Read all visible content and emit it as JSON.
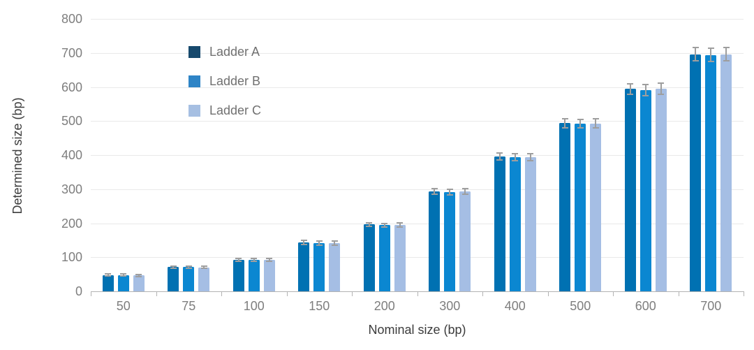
{
  "chart_data": {
    "type": "bar",
    "title": "",
    "xlabel": "Nominal size (bp)",
    "ylabel": "Determined size (bp)",
    "categories": [
      "50",
      "75",
      "100",
      "150",
      "200",
      "300",
      "400",
      "500",
      "600",
      "700"
    ],
    "series": [
      {
        "name": "Ladder A",
        "bar_color": "#0071b2",
        "legend_color": "#17496d",
        "values": [
          48,
          71,
          93,
          143,
          196,
          294,
          396,
          494,
          594,
          696
        ],
        "errors": [
          3,
          3,
          4,
          6,
          6,
          8,
          11,
          13,
          16,
          20
        ]
      },
      {
        "name": "Ladder B",
        "bar_color": "#0b87d1",
        "legend_color": "#2e84c6",
        "values": [
          48,
          71,
          92,
          142,
          194,
          291,
          394,
          492,
          591,
          694
        ],
        "errors": [
          3,
          3,
          4,
          6,
          6,
          8,
          11,
          13,
          16,
          20
        ]
      },
      {
        "name": "Ladder C",
        "bar_color": "#a5bee4",
        "legend_color": "#a6bfe2",
        "values": [
          47,
          70,
          92,
          142,
          195,
          293,
          394,
          493,
          595,
          696
        ],
        "errors": [
          3,
          3,
          4,
          6,
          6,
          8,
          11,
          13,
          16,
          20
        ]
      }
    ],
    "ylim": [
      0,
      800
    ],
    "ytick_step": 100,
    "grid": true,
    "legend_position": "inside-top-left",
    "colors": {
      "error_bar": "#9e9e9e",
      "axis_line": "#b3b3b3",
      "gridline": "#e9e9e9",
      "tick_label": "#7e7e7e",
      "axis_title": "#3c3c3c",
      "legend_label": "#707070",
      "background": "#ffffff"
    }
  }
}
